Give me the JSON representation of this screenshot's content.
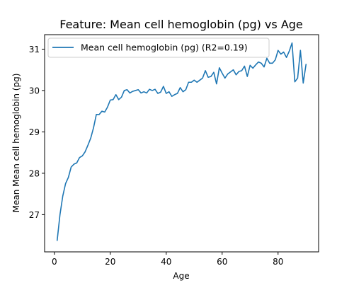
{
  "chart_data": {
    "type": "line",
    "title": "Feature: Mean cell hemoglobin (pg) vs Age",
    "xlabel": "Age",
    "ylabel": "Mean Mean cell hemoglobin (pg)",
    "xlim": [
      -3.5,
      94.5
    ],
    "ylim": [
      26.1,
      31.35
    ],
    "xticks": [
      0,
      20,
      40,
      60,
      80
    ],
    "yticks": [
      27,
      28,
      29,
      30,
      31
    ],
    "grid": false,
    "legend_position": "top-left",
    "series": [
      {
        "name": "Mean cell hemoglobin (pg) (R2=0.19)",
        "color": "#1f77b4",
        "x": [
          1,
          2,
          3,
          4,
          5,
          6,
          7,
          8,
          9,
          10,
          11,
          12,
          13,
          14,
          15,
          16,
          17,
          18,
          19,
          20,
          21,
          22,
          23,
          24,
          25,
          26,
          27,
          28,
          29,
          30,
          31,
          32,
          33,
          34,
          35,
          36,
          37,
          38,
          39,
          40,
          41,
          42,
          43,
          44,
          45,
          46,
          47,
          48,
          49,
          50,
          51,
          52,
          53,
          54,
          55,
          56,
          57,
          58,
          59,
          60,
          61,
          62,
          63,
          64,
          65,
          66,
          67,
          68,
          69,
          70,
          71,
          72,
          73,
          74,
          75,
          76,
          77,
          78,
          79,
          80,
          81,
          82,
          83,
          84,
          85,
          86,
          87,
          88,
          89,
          90
        ],
        "y": [
          26.38,
          27.0,
          27.45,
          27.75,
          27.9,
          28.15,
          28.22,
          28.25,
          28.38,
          28.42,
          28.52,
          28.68,
          28.85,
          29.1,
          29.42,
          29.42,
          29.5,
          29.48,
          29.6,
          29.77,
          29.78,
          29.9,
          29.78,
          29.84,
          30.0,
          30.02,
          29.94,
          29.98,
          30.0,
          30.02,
          29.94,
          29.97,
          29.94,
          30.03,
          30.0,
          30.03,
          29.93,
          29.96,
          30.1,
          29.93,
          29.97,
          29.86,
          29.9,
          29.93,
          30.07,
          29.97,
          30.02,
          30.2,
          30.2,
          30.25,
          30.2,
          30.25,
          30.3,
          30.48,
          30.32,
          30.34,
          30.44,
          30.16,
          30.55,
          30.42,
          30.3,
          30.4,
          30.45,
          30.5,
          30.38,
          30.46,
          30.48,
          30.59,
          30.34,
          30.61,
          30.54,
          30.62,
          30.69,
          30.66,
          30.57,
          30.78,
          30.66,
          30.66,
          30.74,
          30.97,
          30.88,
          30.93,
          30.8,
          30.95,
          31.15,
          30.21,
          30.3,
          30.97,
          30.18,
          30.63
        ]
      }
    ]
  }
}
